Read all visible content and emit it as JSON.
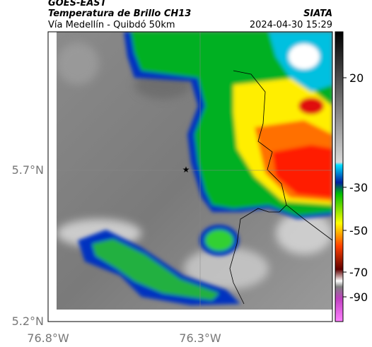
{
  "header": {
    "satellite": "GOES-EAST",
    "product": "Temperatura de Brillo CH13",
    "route": "Vía Medellín - Quibdó 50km",
    "source": "SIATA",
    "datetime": "2024-04-30 15:29"
  },
  "map": {
    "lat_labels": [
      "5.7°N",
      "5.2°N"
    ],
    "lon_labels": [
      "76.8°W",
      "76.3°W"
    ]
  },
  "colorbar": {
    "ticks": [
      20,
      -30,
      -50,
      -70,
      -90
    ]
  }
}
